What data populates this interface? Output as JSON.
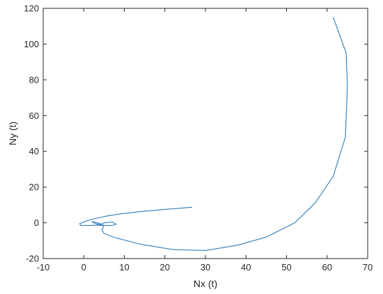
{
  "chart_data": {
    "type": "line",
    "title": "",
    "xlabel": "Nx (t)",
    "ylabel": "Ny (t)",
    "xlim": [
      -10,
      70
    ],
    "ylim": [
      -20,
      120
    ],
    "xticks": [
      -10,
      0,
      10,
      20,
      30,
      40,
      50,
      60,
      70
    ],
    "yticks": [
      -20,
      0,
      20,
      40,
      60,
      80,
      100,
      120
    ],
    "grid": false,
    "box": true,
    "series": [
      {
        "color": "#2b7bba",
        "x": [
          26.7,
          20,
          14,
          9,
          5,
          2,
          0,
          -1,
          -0.7,
          1,
          2,
          3,
          5,
          7,
          8,
          7,
          5,
          4,
          3,
          2,
          3,
          4,
          5,
          4.5,
          5,
          8,
          14,
          22,
          30,
          38,
          45,
          52,
          57,
          61.5,
          64.5,
          65,
          64.7,
          61.5
        ],
        "y": [
          8.7,
          7.5,
          6.3,
          5,
          3.5,
          2,
          0.5,
          -0.5,
          -1.5,
          -1.5,
          -1.5,
          -1.3,
          -1.5,
          -1.5,
          -0.8,
          0.4,
          0,
          -1,
          -0.5,
          0.5,
          0.3,
          -0.5,
          -1.5,
          -4,
          -6,
          -8.5,
          -12,
          -15,
          -15.5,
          -12.5,
          -8,
          0,
          11,
          26,
          48,
          77,
          95,
          115
        ]
      }
    ]
  }
}
